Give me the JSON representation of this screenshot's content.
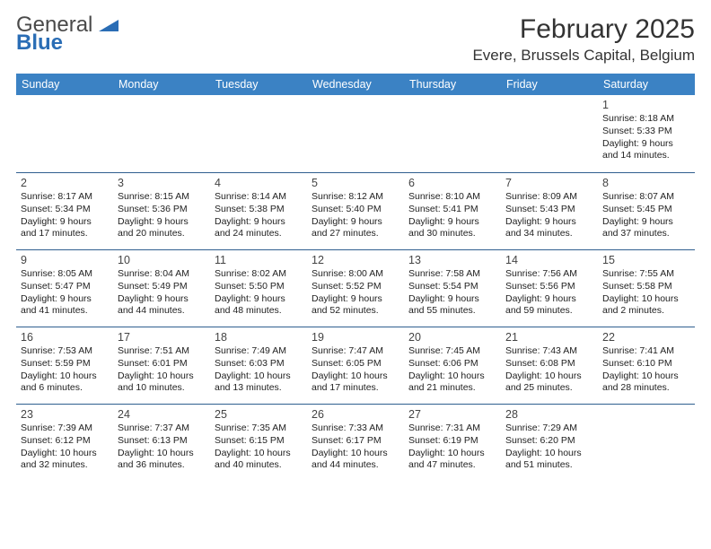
{
  "logo": {
    "word1": "General",
    "word2": "Blue"
  },
  "title": "February 2025",
  "location": "Evere, Brussels Capital, Belgium",
  "colors": {
    "header_bg": "#3b82c4",
    "header_text": "#ffffff",
    "row_border": "#2f5f8f",
    "body_text": "#222222",
    "logo_gray": "#4a4a4a",
    "logo_blue": "#2a6db5"
  },
  "daysOfWeek": [
    "Sunday",
    "Monday",
    "Tuesday",
    "Wednesday",
    "Thursday",
    "Friday",
    "Saturday"
  ],
  "weeks": [
    [
      null,
      null,
      null,
      null,
      null,
      null,
      {
        "n": "1",
        "sunrise": "8:18 AM",
        "sunset": "5:33 PM",
        "daylight": "9 hours and 14 minutes."
      }
    ],
    [
      {
        "n": "2",
        "sunrise": "8:17 AM",
        "sunset": "5:34 PM",
        "daylight": "9 hours and 17 minutes."
      },
      {
        "n": "3",
        "sunrise": "8:15 AM",
        "sunset": "5:36 PM",
        "daylight": "9 hours and 20 minutes."
      },
      {
        "n": "4",
        "sunrise": "8:14 AM",
        "sunset": "5:38 PM",
        "daylight": "9 hours and 24 minutes."
      },
      {
        "n": "5",
        "sunrise": "8:12 AM",
        "sunset": "5:40 PM",
        "daylight": "9 hours and 27 minutes."
      },
      {
        "n": "6",
        "sunrise": "8:10 AM",
        "sunset": "5:41 PM",
        "daylight": "9 hours and 30 minutes."
      },
      {
        "n": "7",
        "sunrise": "8:09 AM",
        "sunset": "5:43 PM",
        "daylight": "9 hours and 34 minutes."
      },
      {
        "n": "8",
        "sunrise": "8:07 AM",
        "sunset": "5:45 PM",
        "daylight": "9 hours and 37 minutes."
      }
    ],
    [
      {
        "n": "9",
        "sunrise": "8:05 AM",
        "sunset": "5:47 PM",
        "daylight": "9 hours and 41 minutes."
      },
      {
        "n": "10",
        "sunrise": "8:04 AM",
        "sunset": "5:49 PM",
        "daylight": "9 hours and 44 minutes."
      },
      {
        "n": "11",
        "sunrise": "8:02 AM",
        "sunset": "5:50 PM",
        "daylight": "9 hours and 48 minutes."
      },
      {
        "n": "12",
        "sunrise": "8:00 AM",
        "sunset": "5:52 PM",
        "daylight": "9 hours and 52 minutes."
      },
      {
        "n": "13",
        "sunrise": "7:58 AM",
        "sunset": "5:54 PM",
        "daylight": "9 hours and 55 minutes."
      },
      {
        "n": "14",
        "sunrise": "7:56 AM",
        "sunset": "5:56 PM",
        "daylight": "9 hours and 59 minutes."
      },
      {
        "n": "15",
        "sunrise": "7:55 AM",
        "sunset": "5:58 PM",
        "daylight": "10 hours and 2 minutes."
      }
    ],
    [
      {
        "n": "16",
        "sunrise": "7:53 AM",
        "sunset": "5:59 PM",
        "daylight": "10 hours and 6 minutes."
      },
      {
        "n": "17",
        "sunrise": "7:51 AM",
        "sunset": "6:01 PM",
        "daylight": "10 hours and 10 minutes."
      },
      {
        "n": "18",
        "sunrise": "7:49 AM",
        "sunset": "6:03 PM",
        "daylight": "10 hours and 13 minutes."
      },
      {
        "n": "19",
        "sunrise": "7:47 AM",
        "sunset": "6:05 PM",
        "daylight": "10 hours and 17 minutes."
      },
      {
        "n": "20",
        "sunrise": "7:45 AM",
        "sunset": "6:06 PM",
        "daylight": "10 hours and 21 minutes."
      },
      {
        "n": "21",
        "sunrise": "7:43 AM",
        "sunset": "6:08 PM",
        "daylight": "10 hours and 25 minutes."
      },
      {
        "n": "22",
        "sunrise": "7:41 AM",
        "sunset": "6:10 PM",
        "daylight": "10 hours and 28 minutes."
      }
    ],
    [
      {
        "n": "23",
        "sunrise": "7:39 AM",
        "sunset": "6:12 PM",
        "daylight": "10 hours and 32 minutes."
      },
      {
        "n": "24",
        "sunrise": "7:37 AM",
        "sunset": "6:13 PM",
        "daylight": "10 hours and 36 minutes."
      },
      {
        "n": "25",
        "sunrise": "7:35 AM",
        "sunset": "6:15 PM",
        "daylight": "10 hours and 40 minutes."
      },
      {
        "n": "26",
        "sunrise": "7:33 AM",
        "sunset": "6:17 PM",
        "daylight": "10 hours and 44 minutes."
      },
      {
        "n": "27",
        "sunrise": "7:31 AM",
        "sunset": "6:19 PM",
        "daylight": "10 hours and 47 minutes."
      },
      {
        "n": "28",
        "sunrise": "7:29 AM",
        "sunset": "6:20 PM",
        "daylight": "10 hours and 51 minutes."
      },
      null
    ]
  ],
  "labels": {
    "sunrise": "Sunrise:",
    "sunset": "Sunset:",
    "daylight": "Daylight:"
  }
}
